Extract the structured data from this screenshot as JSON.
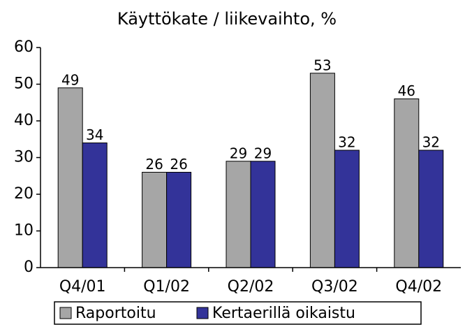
{
  "chart_data": {
    "type": "bar",
    "title": "Käyttökate / liikevaihto, %",
    "categories": [
      "Q4/01",
      "Q1/02",
      "Q2/02",
      "Q3/02",
      "Q4/02"
    ],
    "series": [
      {
        "name": "Raportoitu",
        "color": "#a6a6a6",
        "values": [
          49,
          26,
          29,
          53,
          46
        ]
      },
      {
        "name": "Kertaerillä oikaistu",
        "color": "#333399",
        "values": [
          34,
          26,
          29,
          32,
          32
        ]
      }
    ],
    "ylim": [
      0,
      60
    ],
    "yticks": [
      0,
      10,
      20,
      30,
      40,
      50,
      60
    ],
    "grid": false,
    "legend": "bottom"
  }
}
